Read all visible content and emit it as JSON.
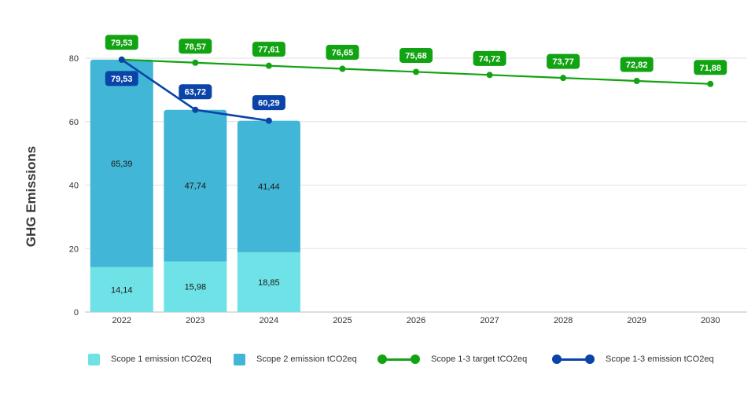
{
  "chart_data": {
    "type": "bar",
    "ylabel": "GHG Emissions",
    "ylim": [
      0,
      80
    ],
    "yticks": [
      "0",
      "20",
      "40",
      "60",
      "80"
    ],
    "grid": true,
    "categories": [
      "2022",
      "2023",
      "2024",
      "2025",
      "2026",
      "2027",
      "2028",
      "2029",
      "2030"
    ],
    "stacked_bars": [
      {
        "name": "Scope 1 emission tCO2eq",
        "color": "#6ee2e6",
        "values": [
          14.14,
          15.98,
          18.85
        ],
        "labels": [
          "14,14",
          "15,98",
          "18,85"
        ]
      },
      {
        "name": "Scope 2 emission tCO2eq",
        "color": "#42b6d6",
        "values": [
          65.39,
          47.74,
          41.44
        ],
        "labels": [
          "65,39",
          "47,74",
          "41,44"
        ]
      }
    ],
    "lines": [
      {
        "name": "Scope 1-3 target tCO2eq",
        "color": "#12a312",
        "values": [
          79.53,
          78.57,
          77.61,
          76.65,
          75.68,
          74.72,
          73.77,
          72.82,
          71.88
        ],
        "labels": [
          "79,53",
          "78,57",
          "77,61",
          "76,65",
          "75,68",
          "74,72",
          "73,77",
          "72,82",
          "71,88"
        ]
      },
      {
        "name": "Scope 1-3 emission tCO2eq",
        "color": "#0a44a8",
        "values": [
          79.53,
          63.72,
          60.29
        ],
        "labels": [
          "79,53",
          "63,72",
          "60,29"
        ]
      }
    ],
    "legend_position": "bottom"
  },
  "legend": [
    {
      "label": "Scope 1 emission tCO2eq",
      "kind": "swatch",
      "color": "#6ee2e6"
    },
    {
      "label": "Scope 2 emission tCO2eq",
      "kind": "swatch",
      "color": "#42b6d6"
    },
    {
      "label": "Scope 1-3 target tCO2eq",
      "kind": "line",
      "color": "#12a312"
    },
    {
      "label": "Scope 1-3 emission tCO2eq",
      "kind": "line",
      "color": "#0a44a8"
    }
  ]
}
